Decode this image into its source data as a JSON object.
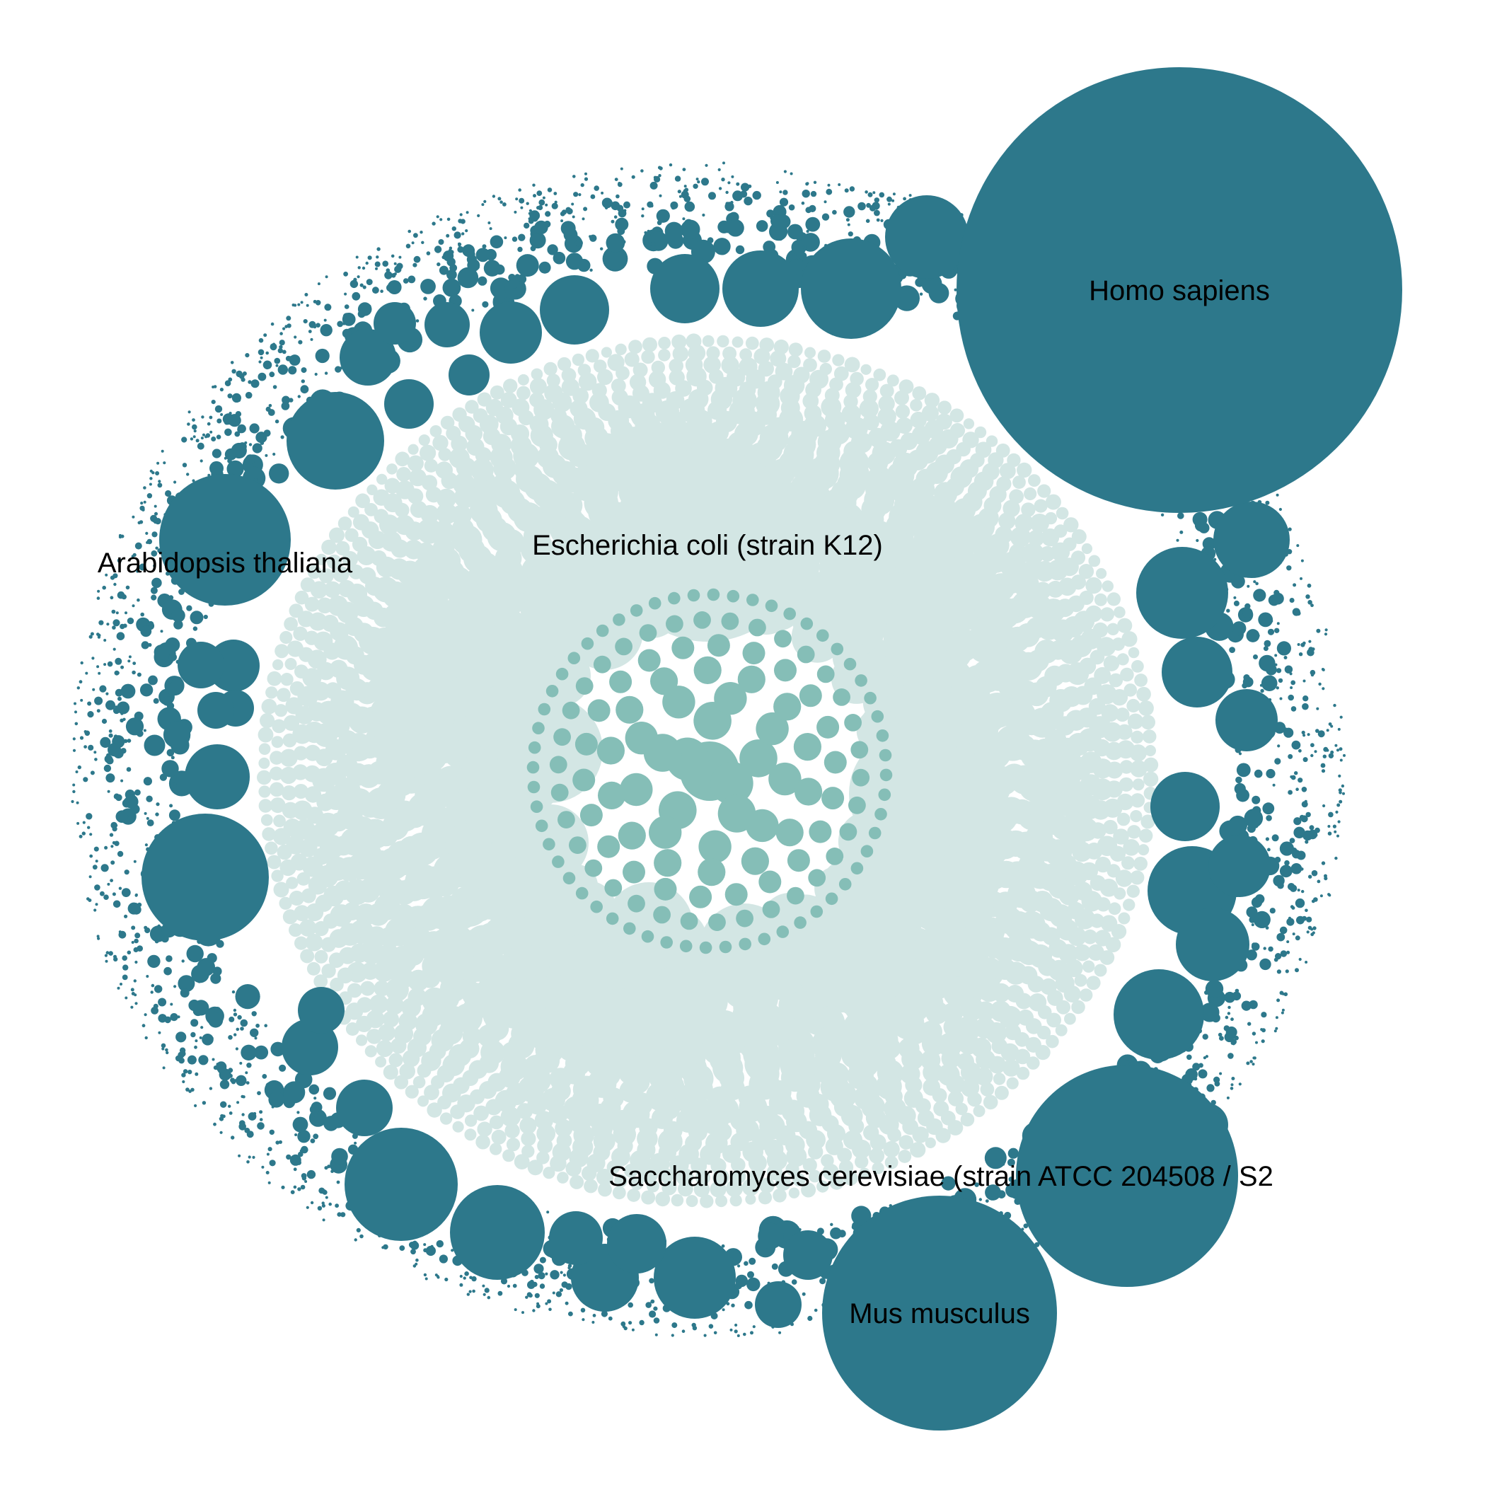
{
  "chart_data": {
    "type": "packed-bubble",
    "title": "",
    "colors": {
      "outer_ring": "#2d788b",
      "middle_ring": "#d3e6e4",
      "inner_core": "#85beb7"
    },
    "series": [
      {
        "name": "outer_ring",
        "description_free": true
      },
      {
        "name": "middle_ring"
      },
      {
        "name": "inner_core"
      }
    ],
    "labeled_bubbles": [
      {
        "label": "Homo sapiens",
        "group": "outer_ring",
        "relative_value": 1.0
      },
      {
        "label": "Mus musculus",
        "group": "outer_ring",
        "relative_value": 0.27
      },
      {
        "label": "Saccharomyces cerevisiae (strain ATCC 204508 / S2",
        "group": "outer_ring",
        "relative_value": 0.24
      },
      {
        "label": "Arabidopsis thaliana",
        "group": "outer_ring",
        "relative_value": 0.085
      },
      {
        "label": "Escherichia coli (strain K12)",
        "group": "middle_ring",
        "relative_value": 0.18
      }
    ]
  }
}
